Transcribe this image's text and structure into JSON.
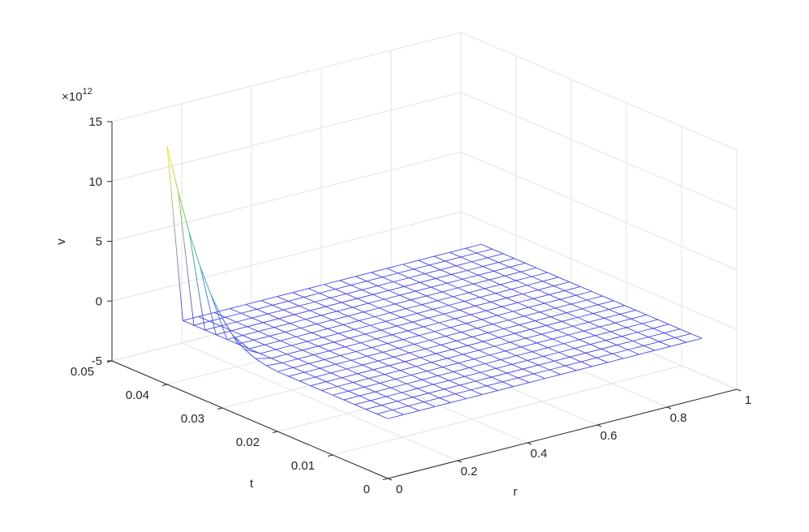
{
  "chart_data": {
    "type": "mesh3d",
    "xlabel": "r",
    "ylabel": "t",
    "zlabel": "v",
    "zlabel_multiplier": "×10",
    "zlabel_exponent": "12",
    "xlim": [
      0,
      1
    ],
    "xticks": [
      0,
      0.2,
      0.4,
      0.6,
      0.8,
      1
    ],
    "ylim": [
      0,
      0.05
    ],
    "yticks": [
      0,
      0.01,
      0.02,
      0.03,
      0.04,
      0.05
    ],
    "zlim": [
      -5,
      15
    ],
    "zticks": [
      -5,
      0,
      5,
      10,
      15
    ],
    "grid": true,
    "colormap": [
      "#4545e0",
      "#2f8ad6",
      "#20b2aa",
      "#8fc440",
      "#f5e020"
    ],
    "x": [
      0,
      0.045,
      0.09,
      0.135,
      0.18,
      0.225,
      0.27,
      0.315,
      0.36,
      0.405,
      0.45,
      0.495,
      0.54,
      0.585,
      0.63,
      0.675,
      0.72,
      0.765,
      0.81,
      0.855,
      0.9
    ],
    "y": [
      0,
      0.002,
      0.004,
      0.006,
      0.008,
      0.01,
      0.012,
      0.014,
      0.016,
      0.018,
      0.02,
      0.022,
      0.024,
      0.026,
      0.028,
      0.03,
      0.032,
      0.034,
      0.036,
      0.038,
      0.04
    ],
    "z": [
      [
        0,
        0,
        0,
        0,
        0,
        0,
        0,
        0,
        0,
        0,
        0,
        0,
        0,
        0,
        0,
        0,
        0,
        0,
        0,
        0,
        0
      ],
      [
        0,
        0,
        0,
        0,
        0,
        0,
        0,
        0,
        0,
        0,
        0,
        0,
        0,
        0,
        0,
        0,
        0,
        0,
        0,
        0,
        0
      ],
      [
        0,
        0,
        0,
        0,
        0,
        0,
        0,
        0,
        0,
        0,
        0,
        0,
        0,
        0,
        0,
        0,
        0,
        0,
        0,
        0,
        0
      ],
      [
        0,
        0,
        0,
        0,
        0,
        0,
        0,
        0,
        0,
        0,
        0,
        0,
        0,
        0,
        0,
        0,
        0,
        0,
        0,
        0,
        0
      ],
      [
        0,
        0,
        0,
        0,
        0,
        0,
        0,
        0,
        0,
        0,
        0,
        0,
        0,
        0,
        0,
        0,
        0,
        0,
        0,
        0,
        0
      ],
      [
        0,
        0,
        0,
        0,
        0,
        0,
        0,
        0,
        0,
        0,
        0,
        0,
        0,
        0,
        0,
        0,
        0,
        0,
        0,
        0,
        0
      ],
      [
        0,
        0,
        0,
        0,
        0,
        0,
        0,
        0,
        0,
        0,
        0,
        0,
        0,
        0,
        0,
        0,
        0,
        0,
        0,
        0,
        0
      ],
      [
        0,
        0,
        0,
        0,
        0,
        0,
        0,
        0,
        0,
        0,
        0,
        0,
        0,
        0,
        0,
        0,
        0,
        0,
        0,
        0,
        0
      ],
      [
        0,
        0,
        0,
        0,
        0,
        0,
        0,
        0,
        0,
        0,
        0,
        0,
        0,
        0,
        0,
        0,
        0,
        0,
        0,
        0,
        0
      ],
      [
        0,
        0,
        0,
        0,
        0,
        0,
        0,
        0,
        0,
        0,
        0,
        0,
        0,
        0,
        0,
        0,
        0,
        0,
        0,
        0,
        0
      ],
      [
        0,
        0,
        0,
        0,
        0,
        0,
        0,
        0,
        0,
        0,
        0,
        0,
        0,
        0,
        0,
        0,
        0,
        0,
        0,
        0,
        0
      ],
      [
        0.1,
        0,
        0,
        0,
        0,
        0,
        0,
        0,
        0,
        0,
        0,
        0,
        0,
        0,
        0,
        0,
        0,
        0,
        0,
        0,
        0
      ],
      [
        0.3,
        0,
        0,
        0,
        0,
        0,
        0,
        0,
        0,
        0,
        0,
        0,
        0,
        0,
        0,
        0,
        0,
        0,
        0,
        0,
        0
      ],
      [
        0.7,
        0,
        0,
        0,
        0,
        0,
        0,
        0,
        0,
        0,
        0,
        0,
        0,
        0,
        0,
        0,
        0,
        0,
        0,
        0,
        0
      ],
      [
        1.4,
        0,
        0,
        0,
        0,
        0,
        0,
        0,
        0,
        0,
        0,
        0,
        0,
        0,
        0,
        0,
        0,
        0,
        0,
        0,
        0
      ],
      [
        2.5,
        0,
        0,
        0,
        0,
        0,
        0,
        0,
        0,
        0,
        0,
        0,
        0,
        0,
        0,
        0,
        0,
        0,
        0,
        0,
        0
      ],
      [
        4,
        0,
        0,
        0,
        0,
        0,
        0,
        0,
        0,
        0,
        0,
        0,
        0,
        0,
        0,
        0,
        0,
        0,
        0,
        0,
        0
      ],
      [
        6,
        0,
        0,
        0,
        0,
        0,
        0,
        0,
        0,
        0,
        0,
        0,
        0,
        0,
        0,
        0,
        0,
        0,
        0,
        0,
        0
      ],
      [
        8.5,
        0,
        0,
        0,
        0,
        0,
        0,
        0,
        0,
        0,
        0,
        0,
        0,
        0,
        0,
        0,
        0,
        0,
        0,
        0,
        0
      ],
      [
        11.5,
        0,
        0,
        0,
        0,
        0,
        0,
        0,
        0,
        0,
        0,
        0,
        0,
        0,
        0,
        0,
        0,
        0,
        0,
        0,
        0
      ],
      [
        14.9,
        0,
        0,
        0,
        0,
        0,
        0,
        0,
        0,
        0,
        0,
        0,
        0,
        0,
        0,
        0,
        0,
        0,
        0,
        0,
        0
      ]
    ]
  }
}
